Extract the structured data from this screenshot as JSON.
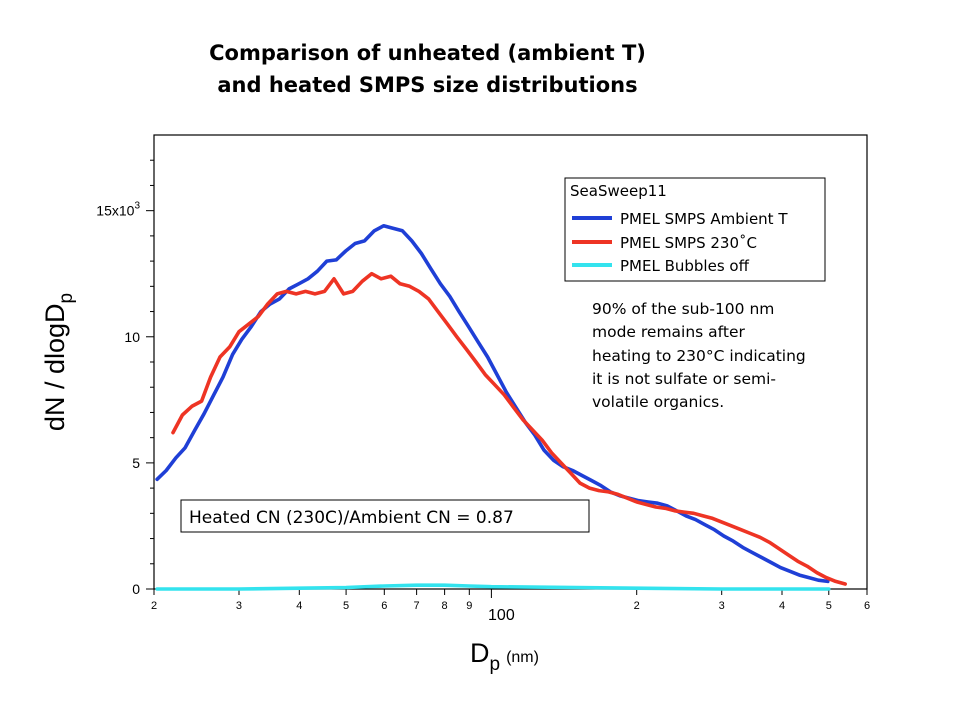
{
  "title": {
    "line1": "Comparison of unheated (ambient T)",
    "line2": "and heated SMPS size distributions"
  },
  "annotation": "90% of the sub-100 nm\nmode remains after\nheating to 230°C indicating\nit is not sulfate or semi-\nvolatile organics.",
  "ratio_box": "Heated CN (230C)/Ambient CN = 0.87",
  "colors": {
    "ambient": "#1f3fd6",
    "heated": "#ee3424",
    "bubbles": "#33e3ee"
  },
  "chart_data": {
    "type": "line",
    "title": "",
    "xlabel": "D",
    "xlabel_sub": "p",
    "xlabel_unit": "(nm)",
    "ylabel": "dN / dlogD",
    "ylabel_sub": "p",
    "x_scale": "log",
    "xlim": [
      20,
      600
    ],
    "ylim": [
      0,
      18000
    ],
    "y_ticks": [
      {
        "value": 0,
        "label": "0"
      },
      {
        "value": 5000,
        "label": "5"
      },
      {
        "value": 10000,
        "label": "10"
      },
      {
        "value": 15000,
        "label": "15x10",
        "sup": "3"
      }
    ],
    "x_ticks": [
      {
        "value": 20,
        "label": "2"
      },
      {
        "value": 30,
        "label": "3"
      },
      {
        "value": 40,
        "label": "4"
      },
      {
        "value": 50,
        "label": "5"
      },
      {
        "value": 60,
        "label": "6"
      },
      {
        "value": 70,
        "label": "7"
      },
      {
        "value": 80,
        "label": "8"
      },
      {
        "value": 90,
        "label": "9"
      },
      {
        "value": 100,
        "label": "100"
      },
      {
        "value": 200,
        "label": "2"
      },
      {
        "value": 300,
        "label": "3"
      },
      {
        "value": 400,
        "label": "4"
      },
      {
        "value": 500,
        "label": "5"
      },
      {
        "value": 600,
        "label": "6"
      }
    ],
    "legend": {
      "title": "SeaSweep11",
      "position": "top-right"
    },
    "grid": false,
    "series": [
      {
        "name": "PMEL SMPS Ambient T",
        "color_key": "ambient",
        "x": [
          20.3,
          21.2,
          22.2,
          23.2,
          24.3,
          25.4,
          26.6,
          27.8,
          29.1,
          30.4,
          31.8,
          33.3,
          34.8,
          36.4,
          38.1,
          39.9,
          41.7,
          43.6,
          45.6,
          47.7,
          49.9,
          52.2,
          54.6,
          57.2,
          59.8,
          62.5,
          65.4,
          68.4,
          71.6,
          74.9,
          78.4,
          82.0,
          85.7,
          89.7,
          93.8,
          98.2,
          102.7,
          107.4,
          112.4,
          117.6,
          123.0,
          128.6,
          134.6,
          140.8,
          147.3,
          154.1,
          161.2,
          168.6,
          176.4,
          184.5,
          193.1,
          202.0,
          211.3,
          221.0,
          231.2,
          241.9,
          253.1,
          264.7,
          276.9,
          289.7,
          303.1,
          317.0,
          331.7,
          346.9,
          363.0,
          379.7,
          397.2,
          415.5,
          434.7,
          454.7,
          475.7,
          497.6
        ],
        "y": [
          4350,
          4700,
          5200,
          5600,
          6300,
          6950,
          7700,
          8400,
          9300,
          9900,
          10400,
          11000,
          11300,
          11500,
          11900,
          12100,
          12300,
          12600,
          13000,
          13050,
          13400,
          13700,
          13800,
          14200,
          14400,
          14300,
          14200,
          13800,
          13300,
          12700,
          12100,
          11600,
          11000,
          10400,
          9800,
          9200,
          8500,
          7800,
          7200,
          6600,
          6100,
          5500,
          5100,
          4850,
          4700,
          4500,
          4300,
          4100,
          3850,
          3700,
          3600,
          3500,
          3450,
          3400,
          3300,
          3100,
          2900,
          2750,
          2550,
          2350,
          2100,
          1900,
          1650,
          1450,
          1250,
          1050,
          850,
          700,
          550,
          450,
          350,
          300
        ]
      },
      {
        "name": "PMEL SMPS 230˚C",
        "color_key": "heated",
        "x": [
          21.9,
          22.9,
          24.0,
          25.1,
          26.2,
          27.4,
          28.7,
          30.0,
          31.4,
          32.9,
          34.4,
          36.0,
          37.6,
          39.4,
          41.2,
          43.1,
          45.1,
          47.2,
          49.4,
          51.6,
          54.0,
          56.5,
          59.1,
          61.9,
          64.7,
          67.7,
          70.8,
          74.1,
          77.5,
          81.1,
          84.8,
          88.8,
          92.9,
          97.1,
          101.6,
          106.3,
          111.2,
          116.4,
          121.8,
          127.4,
          133.3,
          139.4,
          145.9,
          152.6,
          159.7,
          167.1,
          174.8,
          182.9,
          191.3,
          200.2,
          209.4,
          219.1,
          229.2,
          239.8,
          250.9,
          262.5,
          274.6,
          287.3,
          300.6,
          314.5,
          329.0,
          344.2,
          360.1,
          376.7,
          394.1,
          412.3,
          431.4,
          451.3,
          472.2,
          494.0,
          516.8,
          540.7
        ],
        "y": [
          6200,
          6900,
          7250,
          7450,
          8400,
          9200,
          9600,
          10200,
          10500,
          10800,
          11300,
          11700,
          11800,
          11700,
          11800,
          11700,
          11800,
          12300,
          11700,
          11800,
          12200,
          12500,
          12300,
          12400,
          12100,
          12000,
          11800,
          11500,
          11000,
          10500,
          10000,
          9500,
          9000,
          8500,
          8100,
          7700,
          7200,
          6700,
          6300,
          5900,
          5400,
          5000,
          4600,
          4200,
          4000,
          3900,
          3850,
          3750,
          3600,
          3450,
          3350,
          3250,
          3200,
          3100,
          3050,
          3000,
          2900,
          2800,
          2650,
          2500,
          2350,
          2200,
          2050,
          1850,
          1600,
          1350,
          1100,
          900,
          650,
          450,
          300,
          200
        ]
      },
      {
        "name": "PMEL Bubbles off",
        "color_key": "bubbles",
        "x": [
          20.3,
          30.0,
          40.0,
          50.0,
          60.0,
          70.0,
          80.0,
          90.0,
          100.0,
          150.0,
          200.0,
          300.0,
          400.0,
          500.0
        ],
        "y": [
          0,
          0,
          30,
          60,
          120,
          150,
          150,
          120,
          90,
          60,
          30,
          0,
          0,
          0
        ]
      }
    ]
  }
}
